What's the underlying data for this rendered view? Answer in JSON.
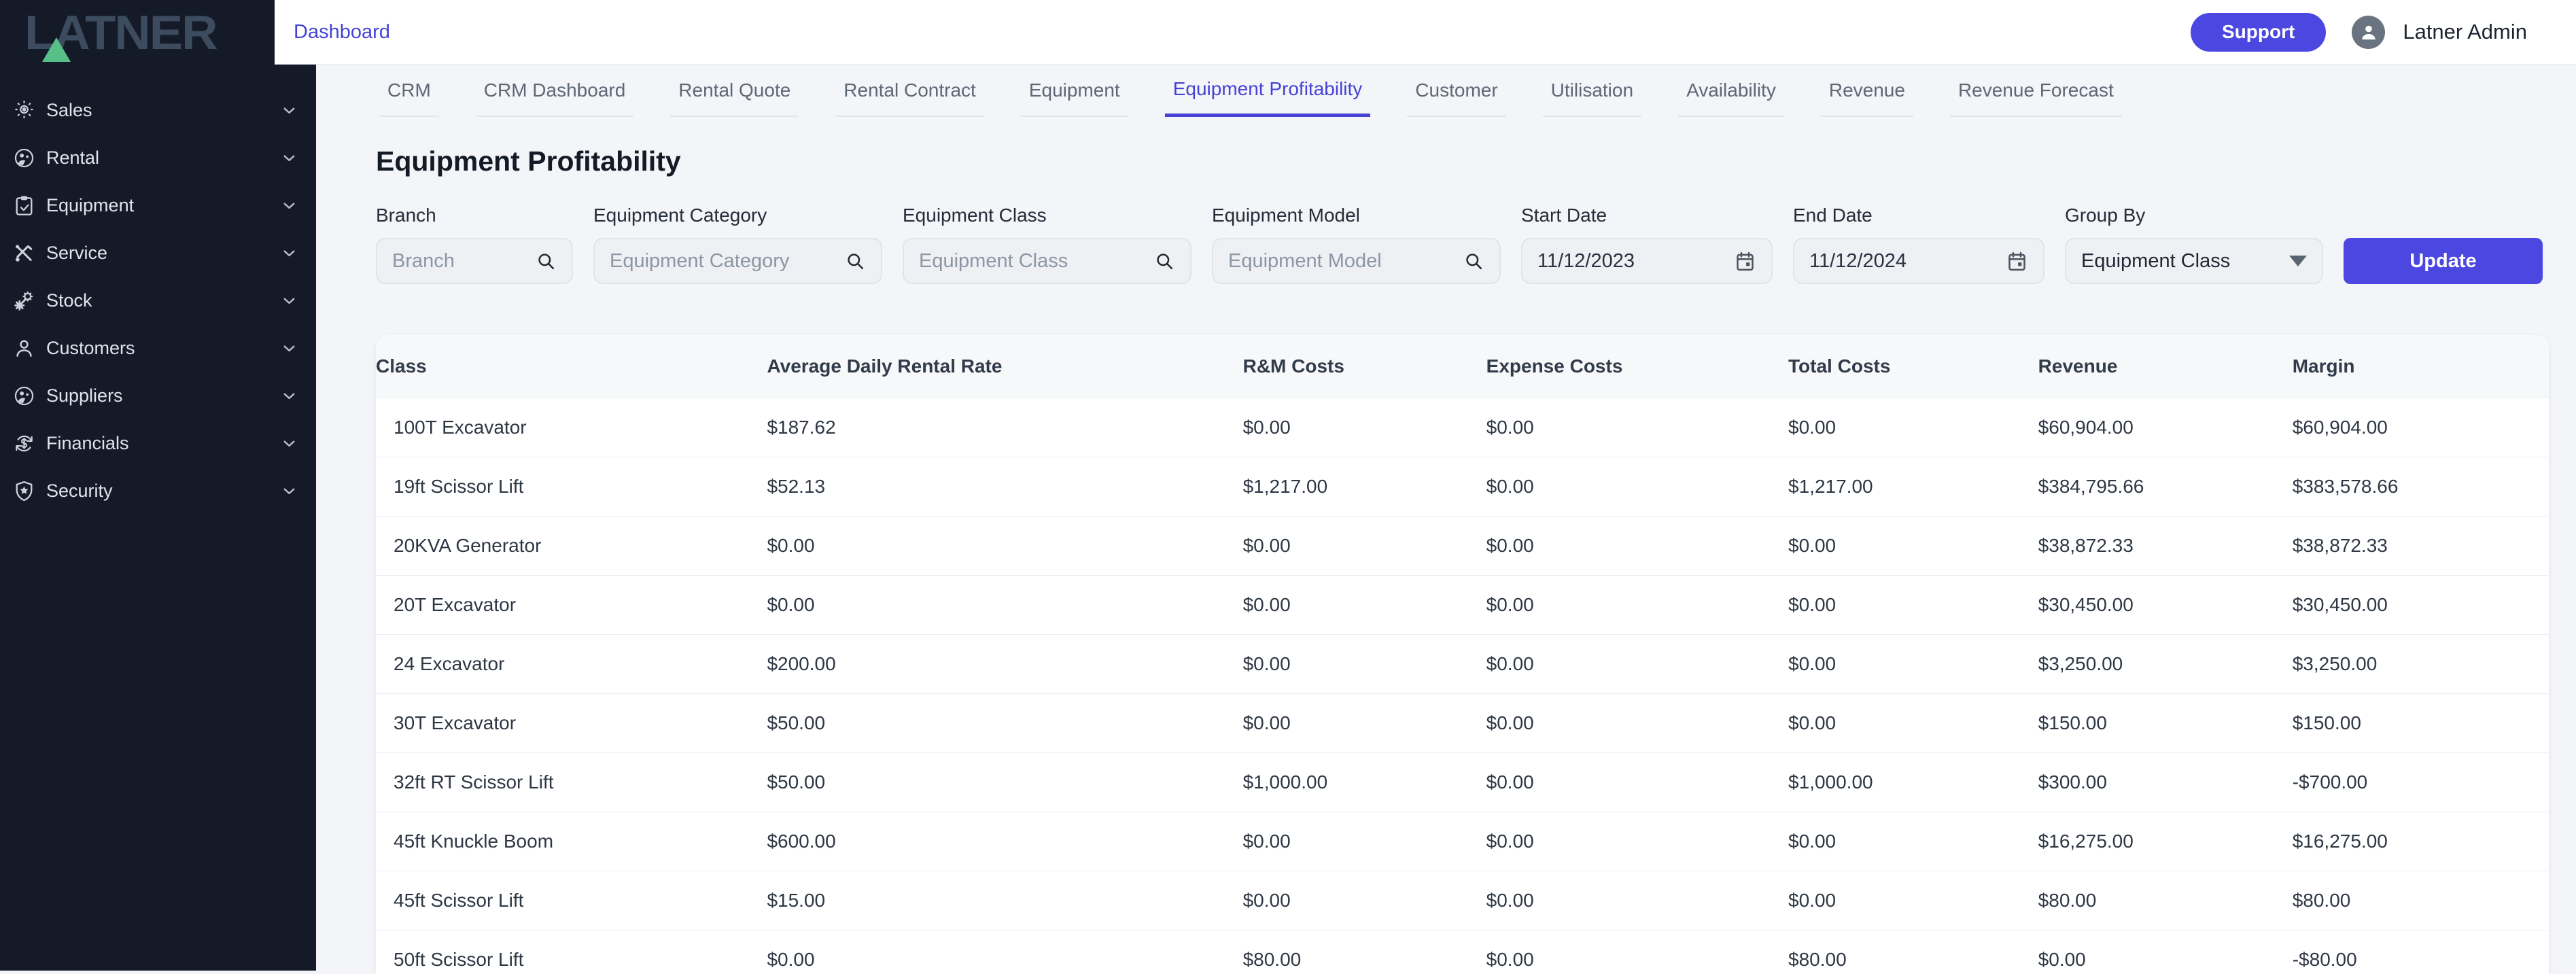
{
  "brand": {
    "logo_text": "LATNER"
  },
  "topbar": {
    "dashboard_link": "Dashboard",
    "support_button": "Support",
    "user_name": "Latner Admin"
  },
  "sidebar": {
    "items": [
      {
        "label": "Sales",
        "icon": "sales-icon"
      },
      {
        "label": "Rental",
        "icon": "rental-icon"
      },
      {
        "label": "Equipment",
        "icon": "equipment-icon"
      },
      {
        "label": "Service",
        "icon": "service-icon"
      },
      {
        "label": "Stock",
        "icon": "stock-icon"
      },
      {
        "label": "Customers",
        "icon": "customers-icon"
      },
      {
        "label": "Suppliers",
        "icon": "suppliers-icon"
      },
      {
        "label": "Financials",
        "icon": "financials-icon"
      },
      {
        "label": "Security",
        "icon": "security-icon"
      }
    ]
  },
  "tabs": {
    "items": [
      {
        "label": "CRM",
        "active": false
      },
      {
        "label": "CRM Dashboard",
        "active": false
      },
      {
        "label": "Rental Quote",
        "active": false
      },
      {
        "label": "Rental Contract",
        "active": false
      },
      {
        "label": "Equipment",
        "active": false
      },
      {
        "label": "Equipment Profitability",
        "active": true
      },
      {
        "label": "Customer",
        "active": false
      },
      {
        "label": "Utilisation",
        "active": false
      },
      {
        "label": "Availability",
        "active": false
      },
      {
        "label": "Revenue",
        "active": false
      },
      {
        "label": "Revenue Forecast",
        "active": false
      }
    ]
  },
  "page": {
    "title": "Equipment Profitability"
  },
  "filters": {
    "branch": {
      "label": "Branch",
      "placeholder": "Branch"
    },
    "equipment_category": {
      "label": "Equipment Category",
      "placeholder": "Equipment Category"
    },
    "equipment_class": {
      "label": "Equipment Class",
      "placeholder": "Equipment Class"
    },
    "equipment_model": {
      "label": "Equipment Model",
      "placeholder": "Equipment Model"
    },
    "start_date": {
      "label": "Start Date",
      "value": "11/12/2023"
    },
    "end_date": {
      "label": "End Date",
      "value": "11/12/2024"
    },
    "group_by": {
      "label": "Group By",
      "value": "Equipment Class"
    },
    "update_button": "Update"
  },
  "table": {
    "columns": [
      "Class",
      "Average Daily Rental Rate",
      "R&M Costs",
      "Expense Costs",
      "Total Costs",
      "Revenue",
      "Margin"
    ],
    "rows": [
      [
        "100T Excavator",
        "$187.62",
        "$0.00",
        "$0.00",
        "$0.00",
        "$60,904.00",
        "$60,904.00"
      ],
      [
        "19ft Scissor Lift",
        "$52.13",
        "$1,217.00",
        "$0.00",
        "$1,217.00",
        "$384,795.66",
        "$383,578.66"
      ],
      [
        "20KVA Generator",
        "$0.00",
        "$0.00",
        "$0.00",
        "$0.00",
        "$38,872.33",
        "$38,872.33"
      ],
      [
        "20T Excavator",
        "$0.00",
        "$0.00",
        "$0.00",
        "$0.00",
        "$30,450.00",
        "$30,450.00"
      ],
      [
        "24 Excavator",
        "$200.00",
        "$0.00",
        "$0.00",
        "$0.00",
        "$3,250.00",
        "$3,250.00"
      ],
      [
        "30T Excavator",
        "$50.00",
        "$0.00",
        "$0.00",
        "$0.00",
        "$150.00",
        "$150.00"
      ],
      [
        "32ft RT Scissor Lift",
        "$50.00",
        "$1,000.00",
        "$0.00",
        "$1,000.00",
        "$300.00",
        "-$700.00"
      ],
      [
        "45ft Knuckle Boom",
        "$600.00",
        "$0.00",
        "$0.00",
        "$0.00",
        "$16,275.00",
        "$16,275.00"
      ],
      [
        "45ft Scissor Lift",
        "$15.00",
        "$0.00",
        "$0.00",
        "$0.00",
        "$80.00",
        "$80.00"
      ],
      [
        "50ft Scissor Lift",
        "$0.00",
        "$80.00",
        "$0.00",
        "$80.00",
        "$0.00",
        "-$80.00"
      ]
    ]
  },
  "colors": {
    "accent": "#4d47e2",
    "active_tab": "#4742d6",
    "sidebar_bg": "#141a27",
    "logo_letters": "#3d4b5e",
    "logo_green": "#57c088",
    "page_bg": "#f3f5f8",
    "table_header_bg": "#f7f8fa"
  }
}
